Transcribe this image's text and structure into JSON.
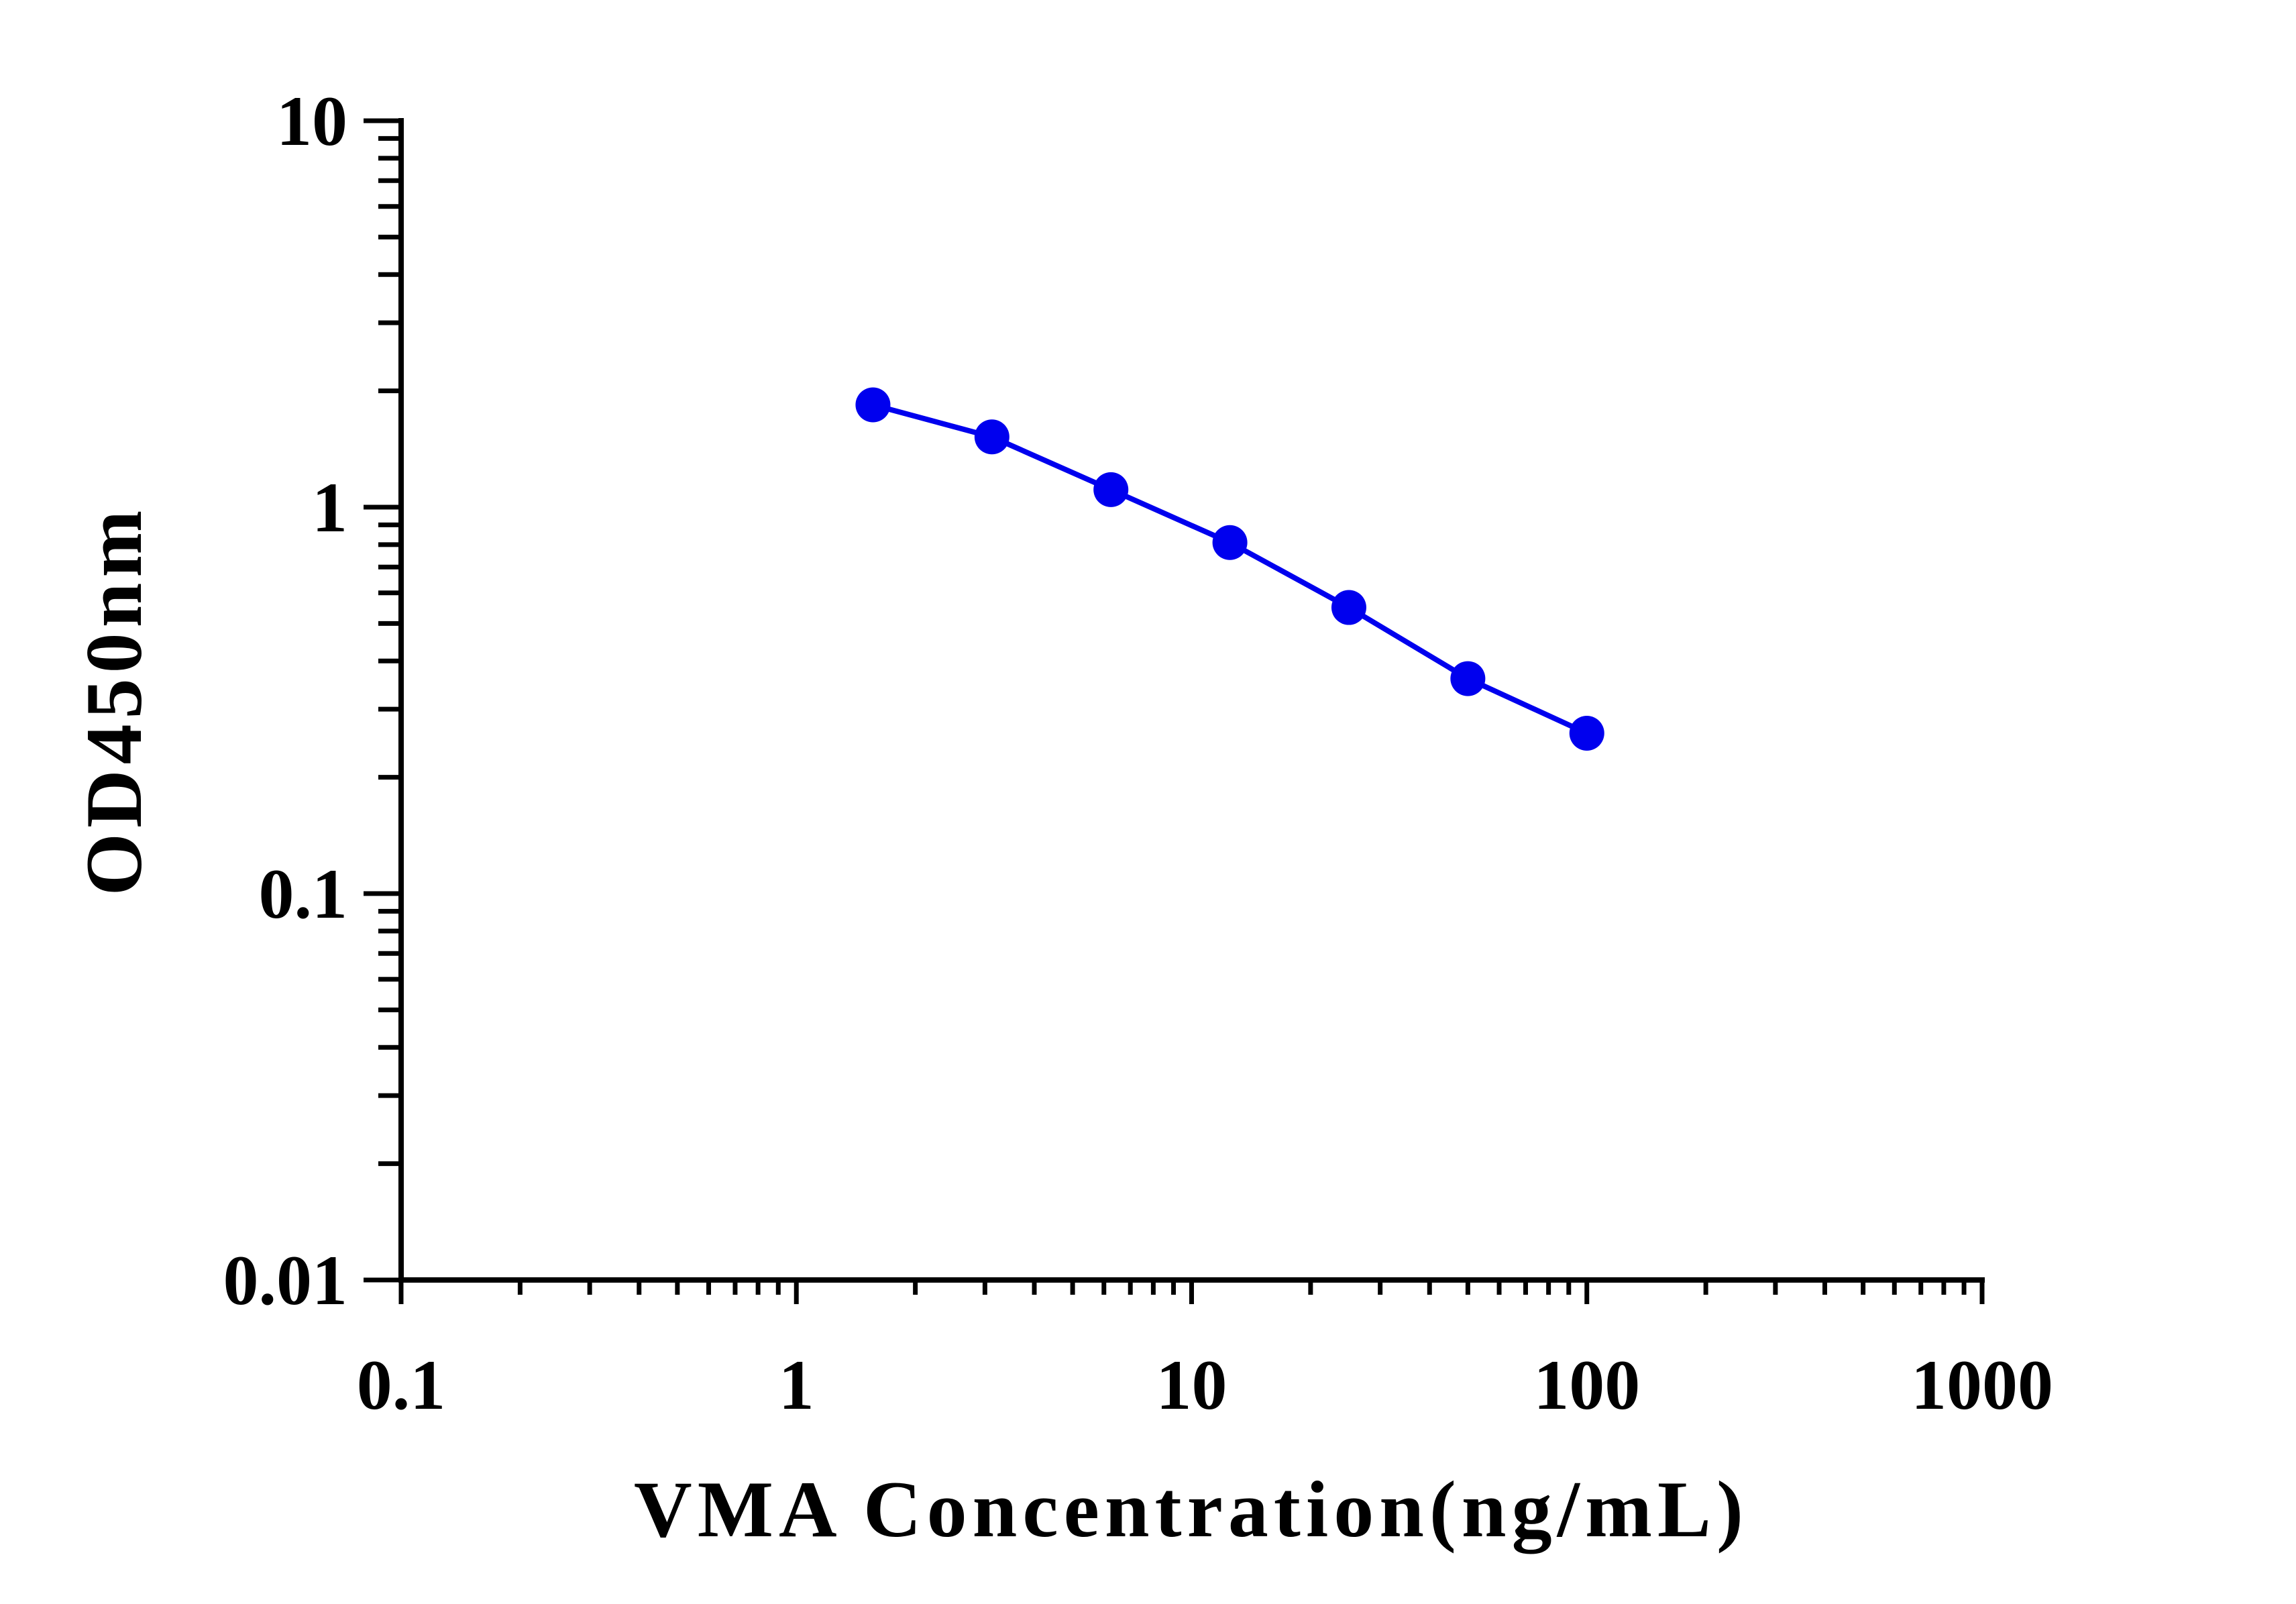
{
  "chart_data": {
    "type": "line",
    "xlabel": "VMA Concentration(ng/mL)",
    "ylabel": "OD450nm",
    "x_scale": "log",
    "y_scale": "log",
    "xlim": [
      0.1,
      1000
    ],
    "ylim": [
      0.01,
      10
    ],
    "x_ticks": [
      "0.1",
      "1",
      "10",
      "100",
      "1000"
    ],
    "y_ticks": [
      "0.01",
      "0.1",
      "1",
      "10"
    ],
    "grid": false,
    "series": [
      {
        "color": "#0000ee",
        "marker": "circle",
        "x": [
          1.5625,
          3.125,
          6.25,
          12.5,
          25,
          50,
          100
        ],
        "y": [
          1.84,
          1.52,
          1.11,
          0.81,
          0.55,
          0.36,
          0.26
        ]
      }
    ]
  }
}
